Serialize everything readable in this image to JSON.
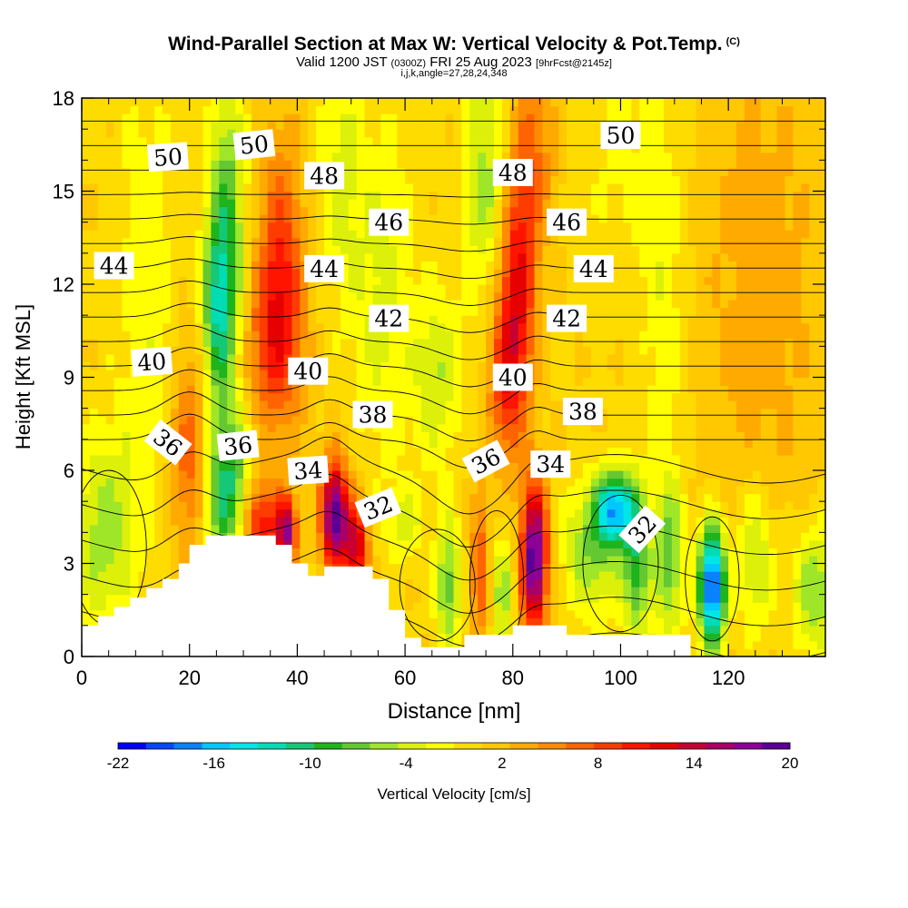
{
  "chart_data": {
    "type": "heatmap",
    "title": "Wind-Parallel Section at Max W: Vertical Velocity & Pot.Temp.",
    "title_mark": "(C)",
    "subtitle_main": "Valid 1200 JST",
    "subtitle_utc": "(0300Z)",
    "subtitle_date": "FRI 25 Aug 2023",
    "subtitle_fcst": "[9hrFcst@2145z]",
    "subtitle2": "i,j,k,angle=27,28,24,348",
    "xlabel": "Distance [nm]",
    "ylabel": "Height [Kft MSL]",
    "xlim": [
      0,
      138
    ],
    "ylim": [
      0,
      18
    ],
    "x_ticks": [
      0,
      20,
      40,
      60,
      80,
      100,
      120
    ],
    "y_ticks": [
      0,
      3,
      6,
      9,
      12,
      15,
      18
    ],
    "colorbar": {
      "label": "Vertical Velocity [cm/s]",
      "tick_labels": [
        "-22",
        "-16",
        "-10",
        "-4",
        "2",
        "8",
        "14",
        "20"
      ],
      "colors": [
        "#0000ff",
        "#0a46ff",
        "#0a82ff",
        "#00c8ff",
        "#00e6e6",
        "#00dcb4",
        "#14c878",
        "#1eb41e",
        "#64c832",
        "#a0e628",
        "#dcf00a",
        "#ffff00",
        "#ffdc00",
        "#ffc800",
        "#ffaa00",
        "#ff8c00",
        "#ff6400",
        "#ff3c00",
        "#ff1400",
        "#e60000",
        "#c80032",
        "#aa0064",
        "#8c0096",
        "#5a0096"
      ]
    },
    "contour_labels": [
      {
        "text": "50",
        "x": 16,
        "y": 16.1,
        "angle": -4
      },
      {
        "text": "50",
        "x": 32,
        "y": 16.5,
        "angle": -6
      },
      {
        "text": "50",
        "x": 100,
        "y": 16.8,
        "angle": 0
      },
      {
        "text": "48",
        "x": 45,
        "y": 15.5,
        "angle": 0
      },
      {
        "text": "48",
        "x": 80,
        "y": 15.6,
        "angle": 0
      },
      {
        "text": "46",
        "x": 57,
        "y": 14.0,
        "angle": 0
      },
      {
        "text": "46",
        "x": 90,
        "y": 14.0,
        "angle": 0
      },
      {
        "text": "44",
        "x": 6,
        "y": 12.6,
        "angle": 0
      },
      {
        "text": "44",
        "x": 45,
        "y": 12.5,
        "angle": 0
      },
      {
        "text": "44",
        "x": 95,
        "y": 12.5,
        "angle": 0
      },
      {
        "text": "42",
        "x": 57,
        "y": 10.9,
        "angle": 0
      },
      {
        "text": "42",
        "x": 90,
        "y": 10.9,
        "angle": 0
      },
      {
        "text": "40",
        "x": 13,
        "y": 9.5,
        "angle": -4
      },
      {
        "text": "40",
        "x": 42,
        "y": 9.2,
        "angle": 0
      },
      {
        "text": "40",
        "x": 80,
        "y": 9.0,
        "angle": 0
      },
      {
        "text": "38",
        "x": 54,
        "y": 7.8,
        "angle": 0
      },
      {
        "text": "38",
        "x": 93,
        "y": 7.9,
        "angle": 0
      },
      {
        "text": "36",
        "x": 16,
        "y": 6.9,
        "angle": 38
      },
      {
        "text": "36",
        "x": 29,
        "y": 6.8,
        "angle": -6
      },
      {
        "text": "36",
        "x": 75,
        "y": 6.3,
        "angle": -28
      },
      {
        "text": "34",
        "x": 42,
        "y": 6.0,
        "angle": -4
      },
      {
        "text": "34",
        "x": 87,
        "y": 6.2,
        "angle": 0
      },
      {
        "text": "32",
        "x": 55,
        "y": 4.8,
        "angle": -22
      },
      {
        "text": "32",
        "x": 104,
        "y": 4.1,
        "angle": -48
      }
    ],
    "isentrope_levels": [
      31,
      32,
      33,
      34,
      35,
      36,
      37,
      38,
      39,
      40,
      41,
      42,
      43,
      44,
      45,
      46,
      47,
      48,
      49,
      50,
      51
    ],
    "velocity_features": [
      {
        "x": 4,
        "z": 4.0,
        "w": -6,
        "sx": 4,
        "sz": 2.2
      },
      {
        "x": 20,
        "z": 6.5,
        "w": 7,
        "sx": 2.5,
        "sz": 2.4
      },
      {
        "x": 27,
        "z": 5.3,
        "w": -11,
        "sx": 3,
        "sz": 1.8
      },
      {
        "x": 33,
        "z": 4.2,
        "w": 11,
        "sx": 2.5,
        "sz": 1.1
      },
      {
        "x": 38,
        "z": 4.0,
        "w": 16,
        "sx": 1.3,
        "sz": 0.8
      },
      {
        "x": 47,
        "z": 4.6,
        "w": 20,
        "sx": 1.8,
        "sz": 1.2
      },
      {
        "x": 51,
        "z": 3.5,
        "w": 13,
        "sx": 1.5,
        "sz": 1.0
      },
      {
        "x": 60,
        "z": 4.3,
        "w": -4,
        "sx": 2.5,
        "sz": 0.8
      },
      {
        "x": 68,
        "z": 2.3,
        "w": -8,
        "sx": 1.6,
        "sz": 1.5
      },
      {
        "x": 74,
        "z": 2.8,
        "w": 7,
        "sx": 1.3,
        "sz": 1.8
      },
      {
        "x": 78,
        "z": 2.0,
        "w": -6,
        "sx": 1.5,
        "sz": 1.4
      },
      {
        "x": 84,
        "z": 3.2,
        "w": 20,
        "sx": 1.7,
        "sz": 1.7
      },
      {
        "x": 95,
        "z": 3.5,
        "w": -7,
        "sx": 4,
        "sz": 1.5
      },
      {
        "x": 99,
        "z": 4.8,
        "w": -15,
        "sx": 2.4,
        "sz": 0.8
      },
      {
        "x": 103,
        "z": 3.0,
        "w": -9,
        "sx": 1.7,
        "sz": 1.8
      },
      {
        "x": 109,
        "z": 3.2,
        "w": -8,
        "sx": 2,
        "sz": 1.8
      },
      {
        "x": 117,
        "z": 2.3,
        "w": -22,
        "sx": 1.7,
        "sz": 1.3
      },
      {
        "x": 125,
        "z": 3.1,
        "w": -6,
        "sx": 2.5,
        "sz": 1.7
      },
      {
        "x": 136,
        "z": 2.1,
        "w": -7,
        "sx": 3,
        "sz": 1.5
      },
      {
        "x": 12,
        "z": 11.5,
        "w": -3,
        "sx": 4,
        "sz": 6
      },
      {
        "x": 27,
        "z": 13.5,
        "w": -9,
        "sx": 2.5,
        "sz": 3.5
      },
      {
        "x": 25,
        "z": 11.0,
        "w": -8,
        "sx": 2,
        "sz": 2
      },
      {
        "x": 37,
        "z": 12.6,
        "w": 8,
        "sx": 3,
        "sz": 3
      },
      {
        "x": 35,
        "z": 10.0,
        "w": 6,
        "sx": 4,
        "sz": 2
      },
      {
        "x": 48,
        "z": 15.5,
        "w": -4,
        "sx": 3,
        "sz": 3
      },
      {
        "x": 56,
        "z": 11.5,
        "w": -4,
        "sx": 4,
        "sz": 4
      },
      {
        "x": 66,
        "z": 9.0,
        "w": -5,
        "sx": 3,
        "sz": 2
      },
      {
        "x": 75,
        "z": 15.5,
        "w": -6,
        "sx": 3,
        "sz": 3
      },
      {
        "x": 79,
        "z": 9.0,
        "w": 9,
        "sx": 2.5,
        "sz": 2
      },
      {
        "x": 81,
        "z": 12.5,
        "w": 10,
        "sx": 2.5,
        "sz": 2.5
      },
      {
        "x": 84,
        "z": 16.5,
        "w": 5,
        "sx": 3,
        "sz": 2
      },
      {
        "x": 100,
        "z": 16.5,
        "w": -2,
        "sx": 6,
        "sz": 3
      },
      {
        "x": 108,
        "z": 11.5,
        "w": -3,
        "sx": 3,
        "sz": 4
      },
      {
        "x": 126,
        "z": 12.0,
        "w": 3,
        "sx": 8,
        "sz": 6
      }
    ],
    "terrain_profile": [
      [
        0,
        1.0
      ],
      [
        3,
        1.0
      ],
      [
        3,
        1.3
      ],
      [
        6,
        1.3
      ],
      [
        6,
        1.6
      ],
      [
        9,
        1.6
      ],
      [
        9,
        1.9
      ],
      [
        12,
        1.9
      ],
      [
        12,
        2.2
      ],
      [
        15,
        2.2
      ],
      [
        15,
        2.5
      ],
      [
        18,
        2.5
      ],
      [
        18,
        3.0
      ],
      [
        20,
        3.0
      ],
      [
        20,
        3.6
      ],
      [
        23,
        3.6
      ],
      [
        23,
        3.9
      ],
      [
        36,
        3.9
      ],
      [
        36,
        3.6
      ],
      [
        39,
        3.6
      ],
      [
        39,
        3.0
      ],
      [
        42,
        3.0
      ],
      [
        42,
        2.6
      ],
      [
        45,
        2.6
      ],
      [
        45,
        2.9
      ],
      [
        54,
        2.9
      ],
      [
        54,
        2.5
      ],
      [
        57,
        2.5
      ],
      [
        57,
        1.5
      ],
      [
        60,
        1.5
      ],
      [
        60,
        0.6
      ],
      [
        63,
        0.6
      ],
      [
        63,
        0.3
      ],
      [
        71,
        0.3
      ],
      [
        71,
        0.7
      ],
      [
        80,
        0.7
      ],
      [
        80,
        1.0
      ],
      [
        90,
        1.0
      ],
      [
        90,
        0.7
      ],
      [
        113,
        0.7
      ],
      [
        113,
        0.0
      ],
      [
        0,
        0.0
      ]
    ]
  }
}
